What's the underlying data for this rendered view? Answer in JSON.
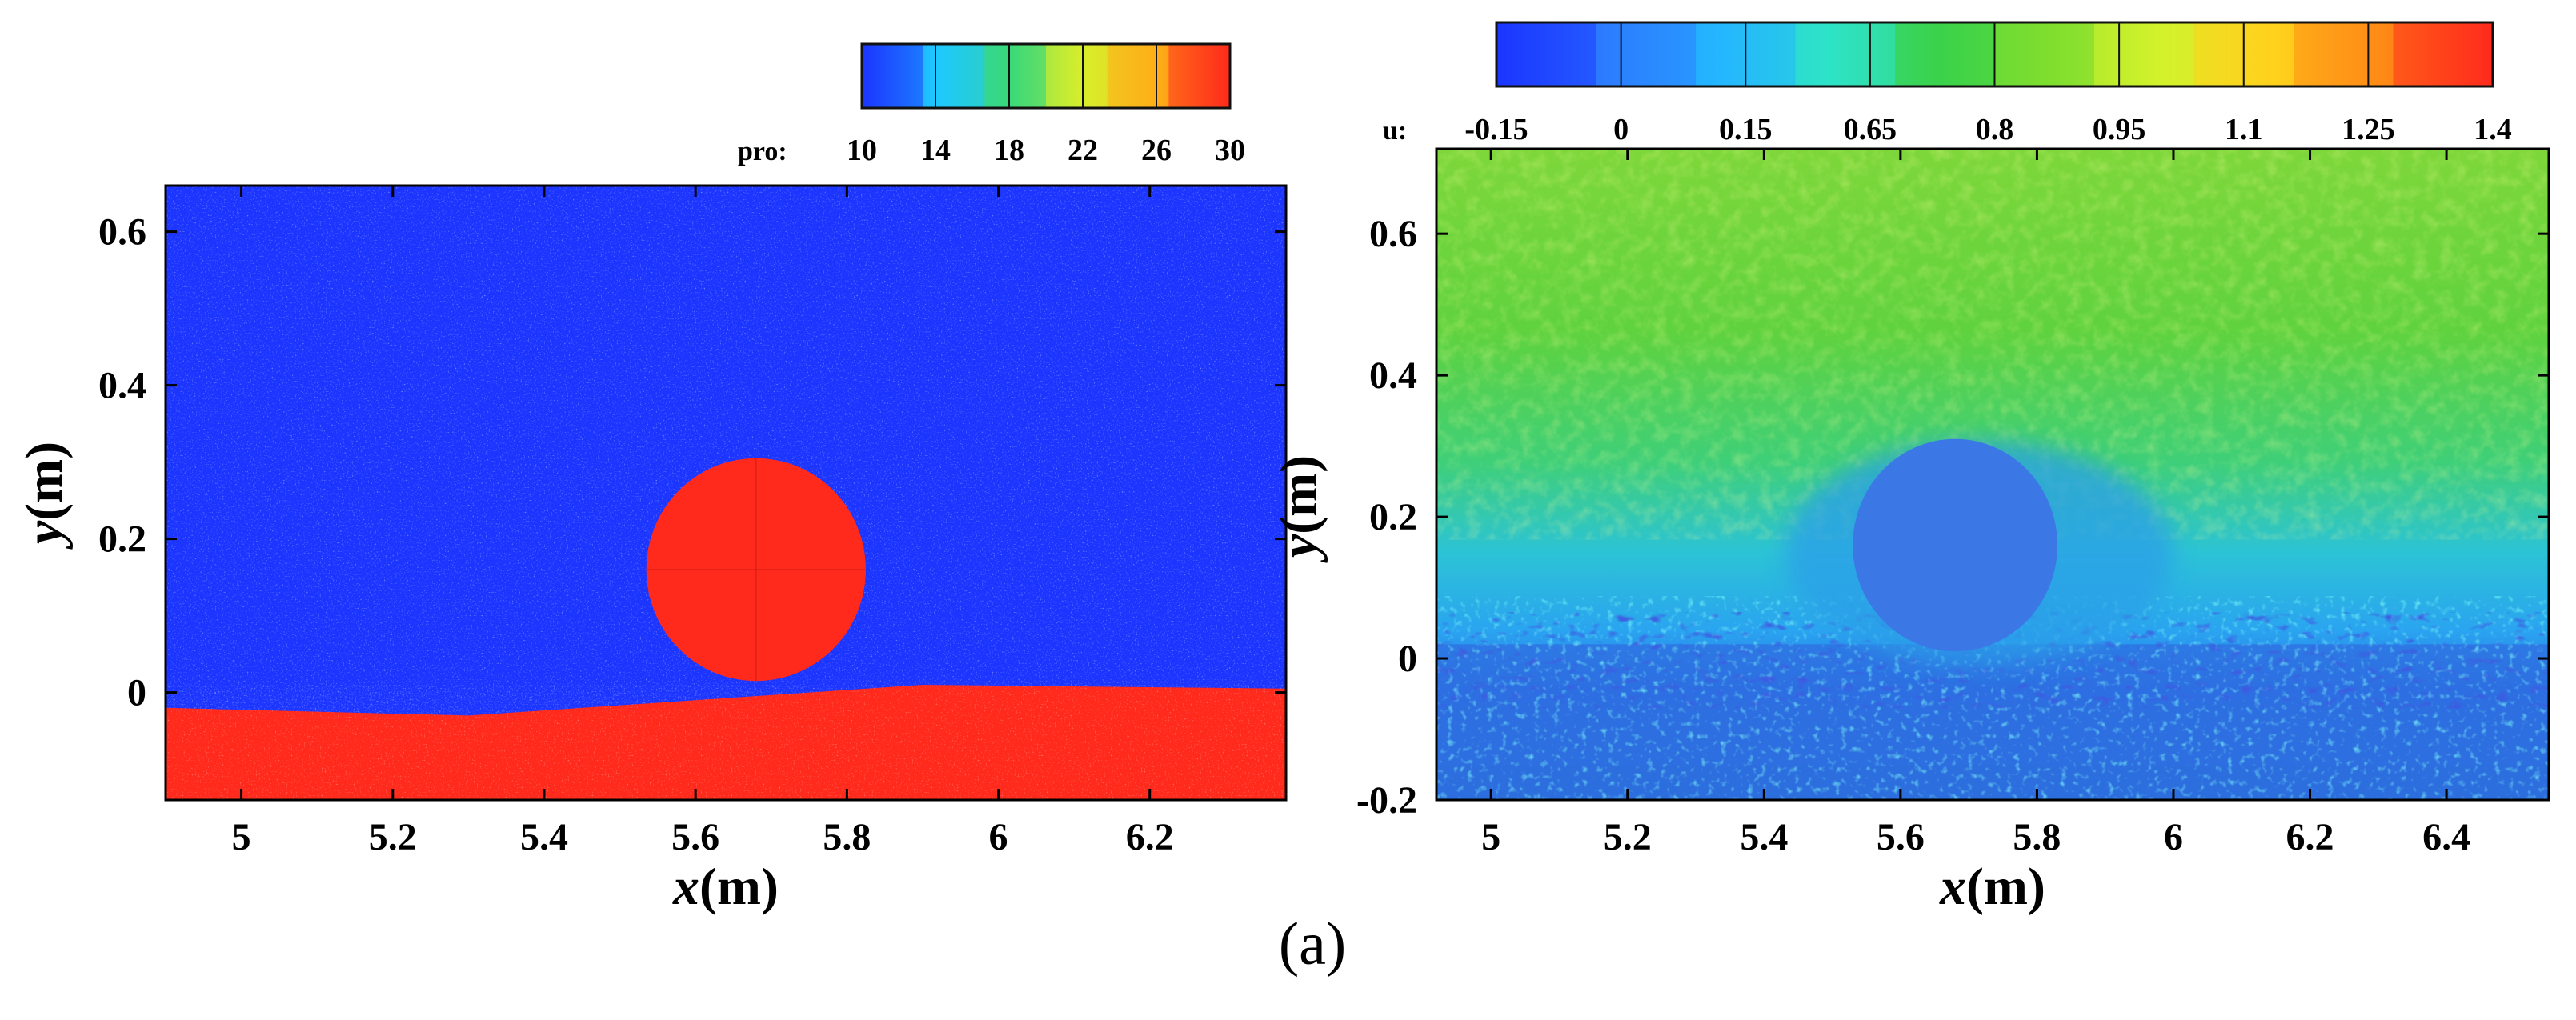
{
  "caption": "(a)",
  "chart_data": [
    {
      "type": "heatmap",
      "colorbar": {
        "label": "pro:",
        "ticks": [
          "10",
          "14",
          "18",
          "22",
          "26",
          "30"
        ],
        "range": [
          10,
          30
        ],
        "colors": [
          "#1b35ff",
          "#1ec8ff",
          "#39d97a",
          "#d8ee2a",
          "#ffae17",
          "#ff2a1c"
        ]
      },
      "xlabel": "x",
      "xunit": "(m)",
      "ylabel": "y",
      "yunit": "(m)",
      "xlim": [
        4.9,
        6.38
      ],
      "ylim": [
        -0.14,
        0.66
      ],
      "xticks": [
        "5",
        "5.2",
        "5.4",
        "5.6",
        "5.8",
        "6",
        "6.2"
      ],
      "yticks": [
        "0.6",
        "0.4",
        "0.2",
        "0"
      ],
      "field": {
        "background_value": 10,
        "obstacle": {
          "center_x": 5.68,
          "center_y": 0.16,
          "radius": 0.145,
          "value": 30
        },
        "bed": {
          "value": 30,
          "surface_x": [
            4.9,
            5.3,
            5.6,
            5.75,
            5.9,
            6.38
          ],
          "surface_y": [
            -0.02,
            -0.03,
            -0.01,
            0.0,
            0.01,
            0.005
          ]
        }
      }
    },
    {
      "type": "heatmap",
      "colorbar": {
        "label": "u:",
        "ticks": [
          "-0.15",
          "0",
          "0.15",
          "0.65",
          "0.8",
          "0.95",
          "1.1",
          "1.25",
          "1.4"
        ],
        "range": [
          -0.15,
          1.4
        ],
        "colors": [
          "#1b35ff",
          "#2c7dff",
          "#24b6ff",
          "#2de3c8",
          "#3ad24a",
          "#7fde2e",
          "#d3f22c",
          "#ffd21c",
          "#ff8a16",
          "#ff2a1c"
        ]
      },
      "xlabel": "x",
      "xunit": "(m)",
      "ylabel": "y",
      "yunit": "(m)",
      "xlim": [
        4.92,
        6.55
      ],
      "ylim": [
        -0.2,
        0.72
      ],
      "xticks": [
        "5",
        "5.2",
        "5.4",
        "5.6",
        "5.8",
        "6",
        "6.2",
        "6.4"
      ],
      "yticks": [
        "0.6",
        "0.4",
        "0.2",
        "0",
        "-0.2"
      ],
      "field": {
        "free_stream_value": 0.8,
        "near_bed_value": 0.15,
        "bed_value": 0.05,
        "obstacle": {
          "center_x": 5.68,
          "center_y": 0.16,
          "radius": 0.15,
          "value": 0.05
        }
      }
    }
  ]
}
